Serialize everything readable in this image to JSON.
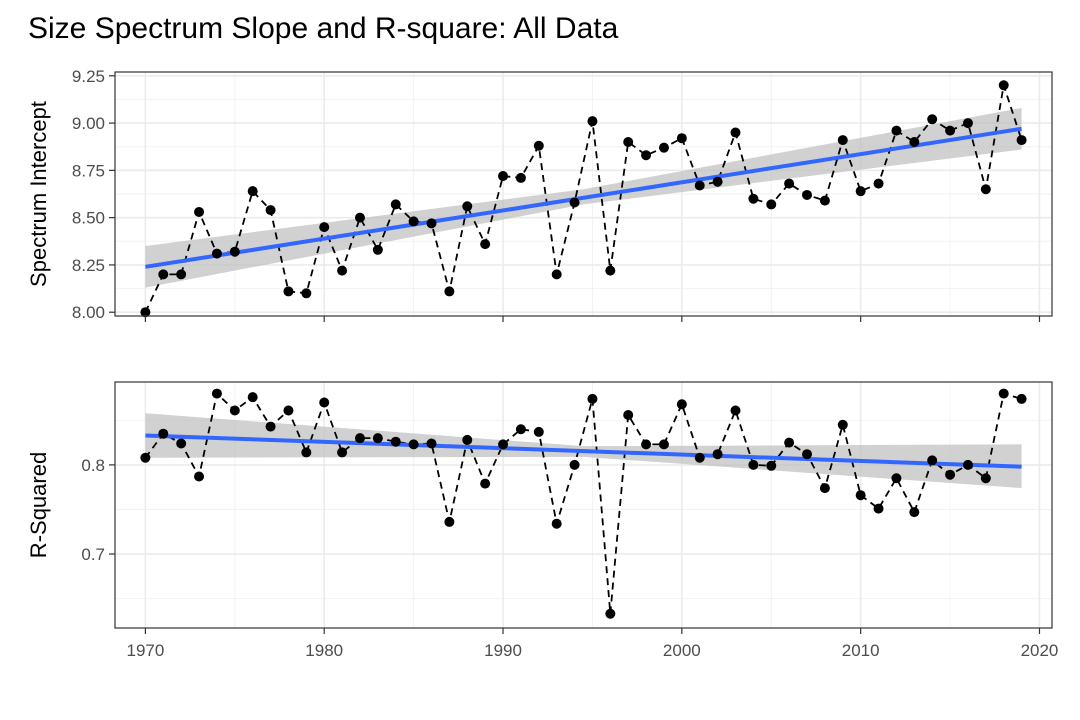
{
  "chart_data": {
    "type": "line",
    "title": "Size Spectrum Slope and R-square: All Data",
    "x": {
      "values": [
        1970,
        1971,
        1972,
        1973,
        1974,
        1975,
        1976,
        1977,
        1978,
        1979,
        1980,
        1981,
        1982,
        1983,
        1984,
        1985,
        1986,
        1987,
        1988,
        1989,
        1990,
        1991,
        1992,
        1993,
        1994,
        1995,
        1996,
        1997,
        1998,
        1999,
        2000,
        2001,
        2002,
        2003,
        2004,
        2005,
        2006,
        2007,
        2008,
        2009,
        2010,
        2011,
        2012,
        2013,
        2014,
        2015,
        2016,
        2017,
        2018,
        2019
      ],
      "ticks": [
        1970,
        1980,
        1990,
        2000,
        2010,
        2020
      ],
      "lim": [
        1968.3,
        2020.7
      ]
    },
    "panels": [
      {
        "ylabel": "Spectrum Intercept",
        "ylim": [
          7.98,
          9.27
        ],
        "yticks": [
          8.0,
          8.25,
          8.5,
          8.75,
          9.0,
          9.25
        ],
        "ytick_labels": [
          "8.00",
          "8.25",
          "8.50",
          "8.75",
          "9.00",
          "9.25"
        ],
        "series": {
          "style": "dashed line with points",
          "color": "#000000",
          "values": [
            8.0,
            8.2,
            8.2,
            8.53,
            8.31,
            8.32,
            8.64,
            8.54,
            8.11,
            8.1,
            8.45,
            8.22,
            8.5,
            8.33,
            8.57,
            8.48,
            8.47,
            8.11,
            8.56,
            8.36,
            8.72,
            8.71,
            8.88,
            8.2,
            8.58,
            9.01,
            8.22,
            8.9,
            8.83,
            8.87,
            8.92,
            8.67,
            8.69,
            8.95,
            8.6,
            8.57,
            8.68,
            8.62,
            8.59,
            8.91,
            8.64,
            8.68,
            8.96,
            8.9,
            9.02,
            8.96,
            9.0,
            8.65,
            9.2,
            8.91
          ]
        },
        "trend": {
          "color": "#3366ff",
          "start": 8.24,
          "end": 8.97
        },
        "ci_band": {
          "color": "#bdbdbd",
          "x": [
            1970,
            1994.5,
            2019
          ],
          "lower": [
            8.13,
            8.57,
            8.86
          ],
          "upper": [
            8.35,
            8.65,
            9.08
          ]
        }
      },
      {
        "ylabel": "R-Squared",
        "ylim": [
          0.617,
          0.893
        ],
        "yticks": [
          0.7,
          0.8
        ],
        "ytick_labels": [
          "0.7",
          "0.8"
        ],
        "series": {
          "style": "dashed line with points",
          "color": "#000000",
          "values": [
            0.808,
            0.835,
            0.824,
            0.787,
            0.88,
            0.861,
            0.876,
            0.843,
            0.861,
            0.814,
            0.87,
            0.814,
            0.83,
            0.83,
            0.826,
            0.823,
            0.824,
            0.736,
            0.828,
            0.779,
            0.823,
            0.84,
            0.837,
            0.734,
            0.8,
            0.874,
            0.633,
            0.856,
            0.823,
            0.823,
            0.868,
            0.808,
            0.812,
            0.861,
            0.8,
            0.799,
            0.825,
            0.812,
            0.774,
            0.845,
            0.766,
            0.751,
            0.785,
            0.747,
            0.805,
            0.789,
            0.8,
            0.785,
            0.88,
            0.874
          ]
        },
        "trend": {
          "color": "#3366ff",
          "start": 0.833,
          "end": 0.798
        },
        "ci_band": {
          "color": "#bdbdbd",
          "x": [
            1970,
            1994.5,
            2019
          ],
          "lower": [
            0.808,
            0.809,
            0.774
          ],
          "upper": [
            0.858,
            0.821,
            0.823
          ]
        }
      }
    ],
    "grid": true,
    "background": "#ffffff",
    "gridline_color": "#ebebeb",
    "border_color": "#333333"
  }
}
